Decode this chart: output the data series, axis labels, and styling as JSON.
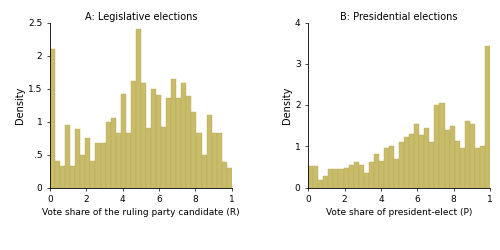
{
  "left_title": "A: Legislative elections",
  "right_title": "B: Presidential elections",
  "left_xlabel": "Vote share of the ruling party candidate (R)",
  "right_xlabel": "Vote share of president-elect (P)",
  "ylabel": "Density",
  "bar_color": "#c8bc6a",
  "bar_edgecolor": "#b8ad5a",
  "left_ylim": [
    0,
    2.5
  ],
  "right_ylim": [
    0,
    4
  ],
  "left_yticks": [
    0,
    0.5,
    1.0,
    1.5,
    2.0,
    2.5
  ],
  "right_yticks": [
    0,
    1,
    2,
    3,
    4
  ],
  "left_ytick_labels": [
    "0",
    ".5",
    "1",
    "1.5",
    "2",
    "2.5"
  ],
  "right_ytick_labels": [
    "0",
    "1",
    "2",
    "3",
    "4"
  ],
  "xtick_labels": [
    "0",
    "2",
    "4",
    "6",
    "8",
    "1"
  ],
  "left_bar_heights": [
    2.1,
    0.4,
    0.33,
    0.95,
    0.33,
    0.88,
    0.5,
    0.75,
    0.4,
    0.68,
    0.68,
    1.0,
    1.05,
    0.82,
    1.42,
    0.82,
    1.62,
    2.4,
    1.58,
    0.9,
    1.5,
    1.4,
    0.92,
    1.35,
    1.65,
    1.35,
    1.58,
    1.38,
    1.15,
    0.82,
    0.5,
    1.1,
    0.82,
    0.82,
    0.38,
    0.3
  ],
  "right_bar_heights": [
    0.52,
    0.52,
    0.18,
    0.28,
    0.45,
    0.45,
    0.45,
    0.48,
    0.55,
    0.62,
    0.55,
    0.35,
    0.62,
    0.82,
    0.65,
    0.95,
    1.0,
    0.68,
    1.1,
    1.22,
    1.3,
    1.55,
    1.28,
    1.45,
    1.1,
    2.0,
    2.05,
    1.4,
    1.5,
    1.12,
    0.95,
    1.62,
    1.55,
    0.95,
    1.0,
    3.42
  ],
  "figsize": [
    5.0,
    2.5
  ],
  "dpi": 100
}
